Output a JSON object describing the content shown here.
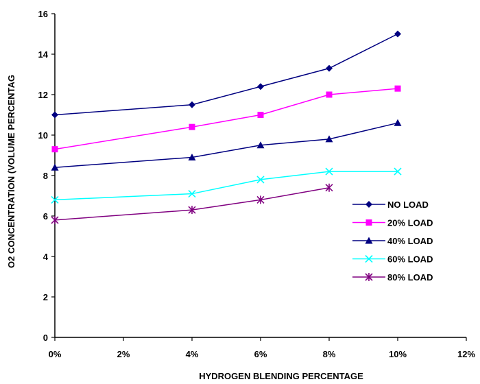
{
  "chart_data": {
    "type": "line",
    "title": "",
    "xlabel": "HYDROGEN BLENDING PERCENTAGE",
    "ylabel": "O2 CONCENTRATION (VOLUME PERCENTAG",
    "xlim": [
      0,
      12
    ],
    "ylim": [
      0,
      16
    ],
    "x_ticks": [
      0,
      2,
      4,
      6,
      8,
      10,
      12
    ],
    "x_tick_labels": [
      "0%",
      "2%",
      "4%",
      "6%",
      "8%",
      "10%",
      "12%"
    ],
    "y_ticks": [
      0,
      2,
      4,
      6,
      8,
      10,
      12,
      14,
      16
    ],
    "y_tick_labels": [
      "0",
      "2",
      "4",
      "6",
      "8",
      "10",
      "12",
      "14",
      "16"
    ],
    "grid": false,
    "legend_position": "right",
    "series": [
      {
        "name": "NO LOAD",
        "color": "#000080",
        "marker": "diamond",
        "x": [
          0,
          4,
          6,
          8,
          10
        ],
        "y": [
          11.0,
          11.5,
          12.4,
          13.3,
          15.0
        ]
      },
      {
        "name": "20% LOAD",
        "color": "#FF00FF",
        "marker": "square",
        "x": [
          0,
          4,
          6,
          8,
          10
        ],
        "y": [
          9.3,
          10.4,
          11.0,
          12.0,
          12.3
        ]
      },
      {
        "name": "40% LOAD",
        "color": "#000080",
        "marker": "triangle",
        "x": [
          0,
          4,
          6,
          8,
          10
        ],
        "y": [
          8.4,
          8.9,
          9.5,
          9.8,
          10.6
        ]
      },
      {
        "name": "60% LOAD",
        "color": "#00FFFF",
        "marker": "x",
        "x": [
          0,
          4,
          6,
          8,
          10
        ],
        "y": [
          6.8,
          7.1,
          7.8,
          8.2,
          8.2
        ]
      },
      {
        "name": "80% LOAD",
        "color": "#800080",
        "marker": "star",
        "x": [
          0,
          4,
          6,
          8
        ],
        "y": [
          5.8,
          6.3,
          6.8,
          7.4
        ]
      }
    ]
  }
}
